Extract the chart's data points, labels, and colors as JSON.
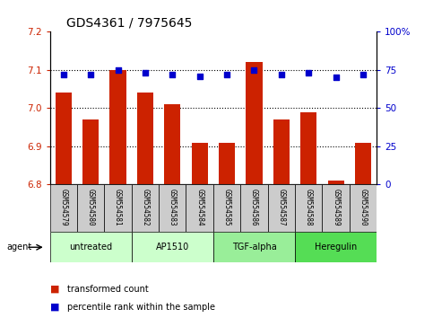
{
  "title": "GDS4361 / 7975645",
  "samples": [
    "GSM554579",
    "GSM554580",
    "GSM554581",
    "GSM554582",
    "GSM554583",
    "GSM554584",
    "GSM554585",
    "GSM554586",
    "GSM554587",
    "GSM554588",
    "GSM554589",
    "GSM554590"
  ],
  "red_values": [
    7.04,
    6.97,
    7.1,
    7.04,
    7.01,
    6.91,
    6.91,
    7.12,
    6.97,
    6.99,
    6.81,
    6.91
  ],
  "blue_values": [
    72,
    72,
    75,
    73,
    72,
    71,
    72,
    75,
    72,
    73,
    70,
    72
  ],
  "ylim_left": [
    6.8,
    7.2
  ],
  "ylim_right": [
    0,
    100
  ],
  "yticks_left": [
    6.8,
    6.9,
    7.0,
    7.1,
    7.2
  ],
  "yticks_right": [
    0,
    25,
    50,
    75,
    100
  ],
  "ytick_labels_right": [
    "0",
    "25",
    "50",
    "75",
    "100%"
  ],
  "hlines": [
    6.9,
    7.0,
    7.1
  ],
  "bar_color": "#cc2200",
  "dot_color": "#0000cc",
  "agent_groups": [
    {
      "label": "untreated",
      "start": 0,
      "end": 3
    },
    {
      "label": "AP1510",
      "start": 3,
      "end": 6
    },
    {
      "label": "TGF-alpha",
      "start": 6,
      "end": 9
    },
    {
      "label": "Heregulin",
      "start": 9,
      "end": 12
    }
  ],
  "group_colors": [
    "#ccffcc",
    "#ccffcc",
    "#99ee99",
    "#55dd55"
  ],
  "legend_labels": [
    "transformed count",
    "percentile rank within the sample"
  ],
  "legend_colors": [
    "#cc2200",
    "#0000cc"
  ],
  "agent_label": "agent",
  "title_fontsize": 10,
  "tick_fontsize": 7.5,
  "sample_fontsize": 5.5,
  "agent_fontsize": 7,
  "legend_fontsize": 7,
  "bar_width": 0.6,
  "base_value": 6.8,
  "dot_size": 15
}
